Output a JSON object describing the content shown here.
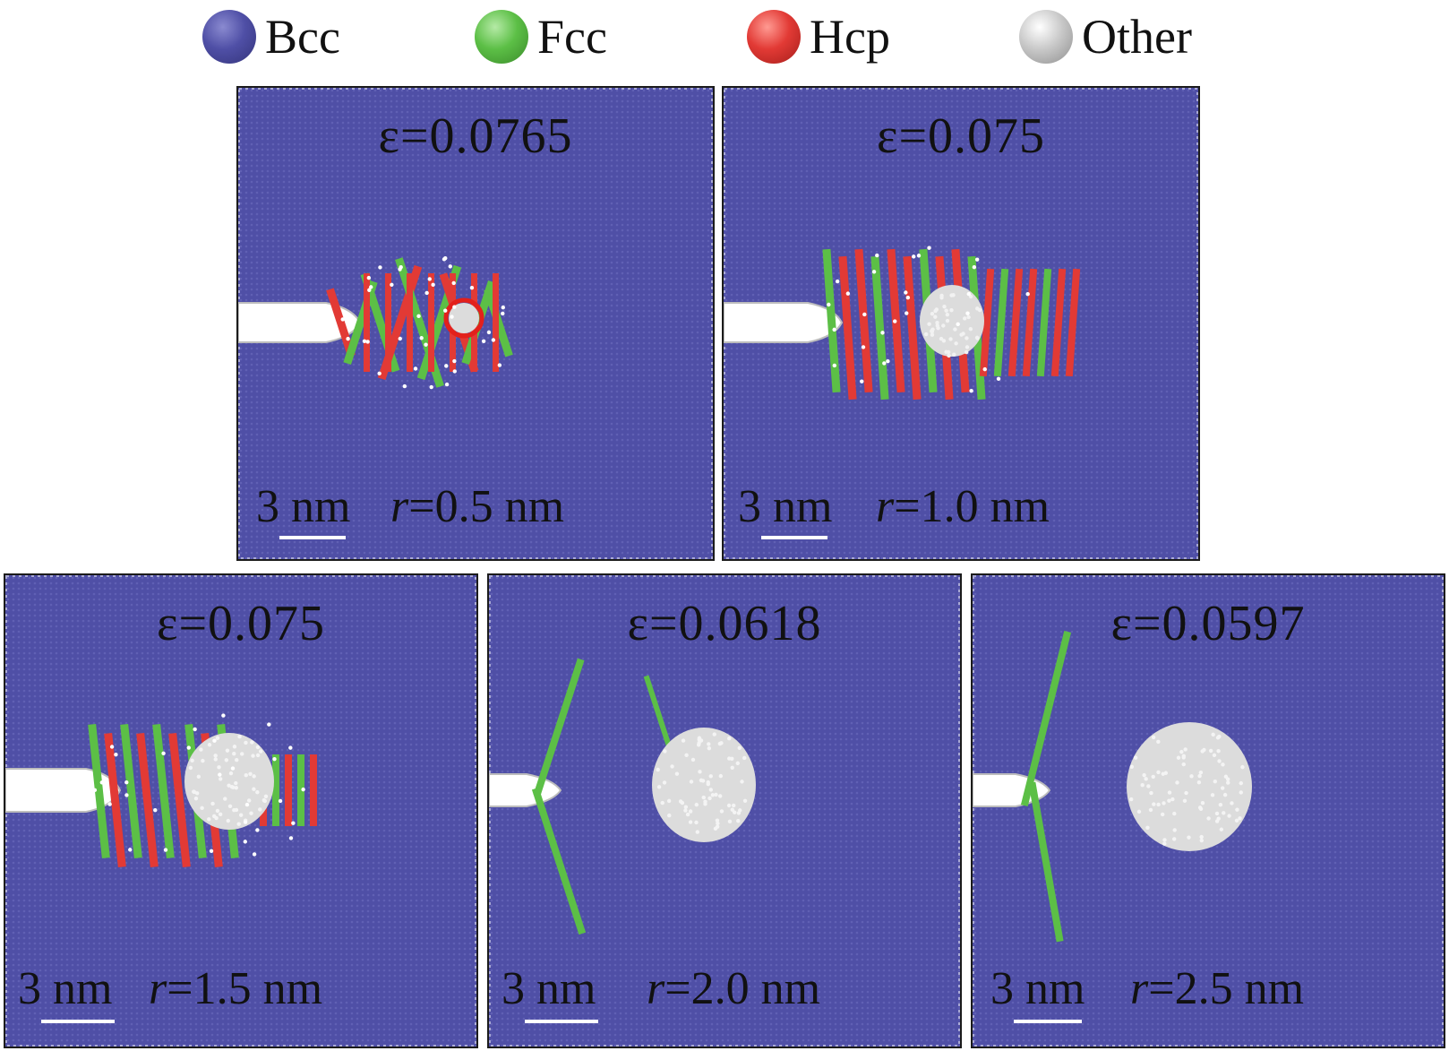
{
  "legend": {
    "items": [
      {
        "label": "Bcc",
        "color": "#4f4fa6",
        "icon": "bcc-atom-icon"
      },
      {
        "label": "Fcc",
        "color": "#5cbf46",
        "icon": "fcc-atom-icon"
      },
      {
        "label": "Hcp",
        "color": "#e23a35",
        "icon": "hcp-atom-icon"
      },
      {
        "label": "Other",
        "color": "#c9c9c9",
        "icon": "other-atom-icon"
      }
    ]
  },
  "colors": {
    "bcc": "#4f4fa6",
    "fcc": "#5cbf46",
    "hcp": "#e23a35",
    "other": "#dcdcdc",
    "crack": "#ffffff"
  },
  "panels": [
    {
      "strain": "ε=0.0765",
      "scale": "3 nm",
      "r_symbol": "r",
      "r_value": "=0.5 nm",
      "void_radius_nm": 0.5
    },
    {
      "strain": "ε=0.075",
      "scale": "3 nm",
      "r_symbol": "r",
      "r_value": "=1.0 nm",
      "void_radius_nm": 1.0
    },
    {
      "strain": "ε=0.075",
      "scale": "3 nm",
      "r_symbol": "r",
      "r_value": "=1.5 nm",
      "void_radius_nm": 1.5
    },
    {
      "strain": "ε=0.0618",
      "scale": "3 nm",
      "r_symbol": "r",
      "r_value": "=2.0 nm",
      "void_radius_nm": 2.0
    },
    {
      "strain": "ε=0.0597",
      "scale": "3 nm",
      "r_symbol": "r",
      "r_value": "=2.5 nm",
      "void_radius_nm": 2.5
    }
  ]
}
